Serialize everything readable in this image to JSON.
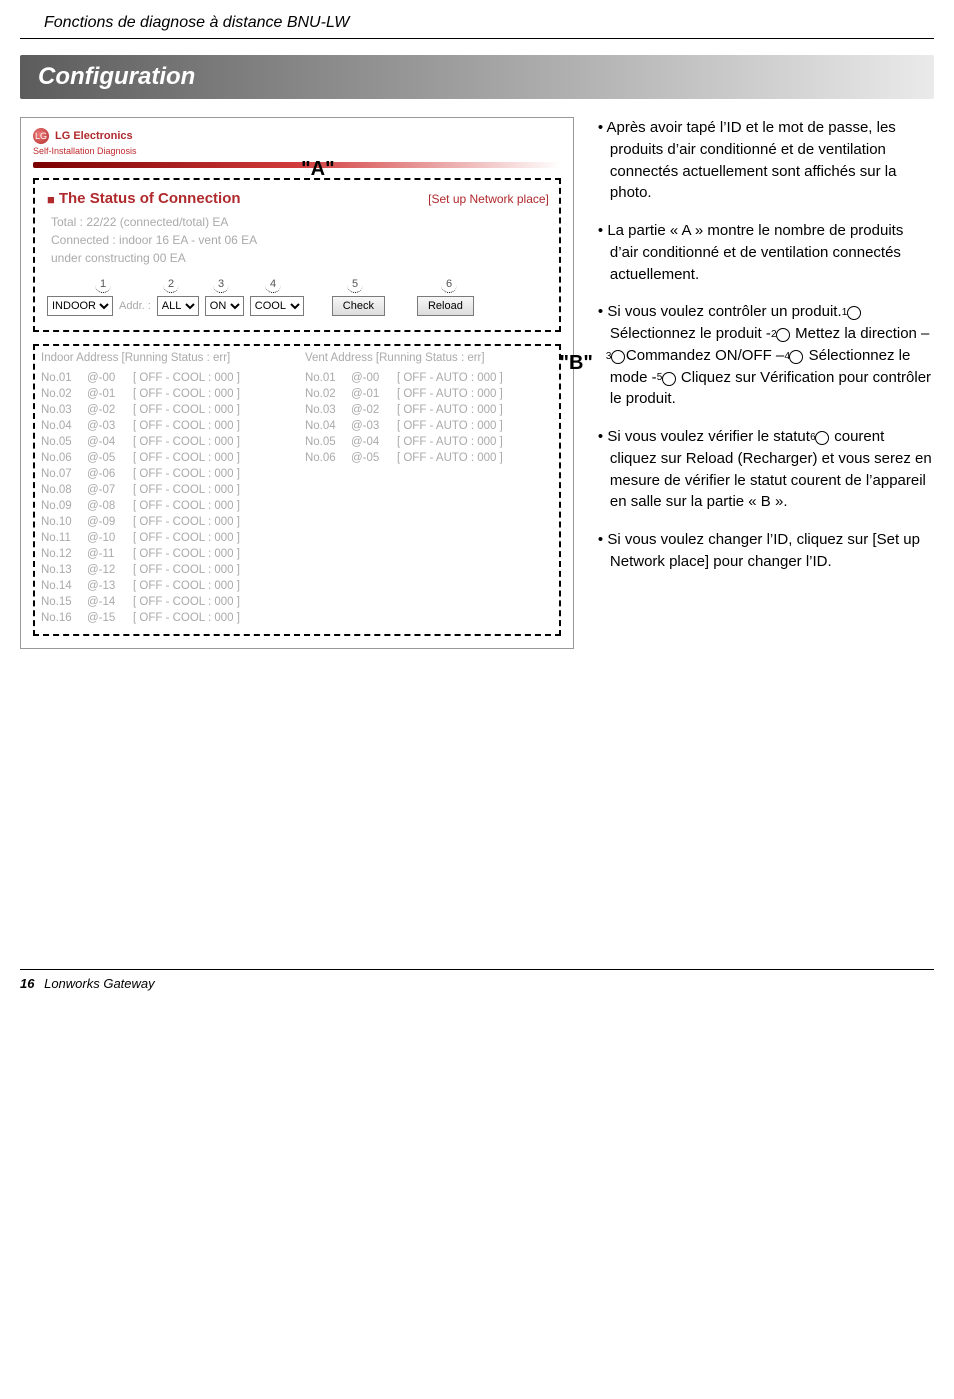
{
  "page": {
    "header_italic": "Fonctions de diagnose à distance BNU-LW",
    "section_title": "Configuration",
    "footer_page": "16",
    "footer_text": "Lonworks Gateway"
  },
  "app": {
    "logo_text": "LG",
    "brand": "LG Electronics",
    "subtitle": "Self-Installation Diagnosis"
  },
  "boxA": {
    "annot": "\"A\"",
    "status_title": "The Status of Connection",
    "setup_link": "[Set up Network place]",
    "line1": "Total : 22/22 (connected/total) EA",
    "line2": "Connected : indoor 16 EA - vent 06 EA",
    "line3": "under constructing 00 EA",
    "n1": "1",
    "n2": "2",
    "n3": "3",
    "n4": "4",
    "n5": "5",
    "n6": "6",
    "sel_group": "INDOOR",
    "addr_label": "Addr. :",
    "sel_addr": "ALL",
    "sel_onoff": "ON",
    "sel_mode": "COOL",
    "btn_check": "Check",
    "btn_reload": "Reload"
  },
  "boxB": {
    "annot": "\"B\"",
    "head_left": "Indoor Address [Running Status : err]",
    "head_right": "Vent   Address [Running Status : err]",
    "left_rows": [
      {
        "no": "No.01",
        "addr": "@-00",
        "stat": "[ OFF - COOL : 000 ]"
      },
      {
        "no": "No.02",
        "addr": "@-01",
        "stat": "[ OFF - COOL : 000 ]"
      },
      {
        "no": "No.03",
        "addr": "@-02",
        "stat": "[ OFF - COOL : 000 ]"
      },
      {
        "no": "No.04",
        "addr": "@-03",
        "stat": "[ OFF - COOL : 000 ]"
      },
      {
        "no": "No.05",
        "addr": "@-04",
        "stat": "[ OFF - COOL : 000 ]"
      },
      {
        "no": "No.06",
        "addr": "@-05",
        "stat": "[ OFF - COOL : 000 ]"
      },
      {
        "no": "No.07",
        "addr": "@-06",
        "stat": "[ OFF - COOL : 000 ]"
      },
      {
        "no": "No.08",
        "addr": "@-07",
        "stat": "[ OFF - COOL : 000 ]"
      },
      {
        "no": "No.09",
        "addr": "@-08",
        "stat": "[ OFF - COOL : 000 ]"
      },
      {
        "no": "No.10",
        "addr": "@-09",
        "stat": "[ OFF - COOL : 000 ]"
      },
      {
        "no": "No.11",
        "addr": "@-10",
        "stat": "[ OFF - COOL : 000 ]"
      },
      {
        "no": "No.12",
        "addr": "@-11",
        "stat": "[ OFF - COOL : 000 ]"
      },
      {
        "no": "No.13",
        "addr": "@-12",
        "stat": "[ OFF - COOL : 000 ]"
      },
      {
        "no": "No.14",
        "addr": "@-13",
        "stat": "[ OFF - COOL : 000 ]"
      },
      {
        "no": "No.15",
        "addr": "@-14",
        "stat": "[ OFF - COOL : 000 ]"
      },
      {
        "no": "No.16",
        "addr": "@-15",
        "stat": "[ OFF - COOL : 000 ]"
      }
    ],
    "right_rows": [
      {
        "no": "No.01",
        "addr": "@-00",
        "stat": "[ OFF - AUTO   : 000 ]"
      },
      {
        "no": "No.02",
        "addr": "@-01",
        "stat": "[ OFF - AUTO   : 000 ]"
      },
      {
        "no": "No.03",
        "addr": "@-02",
        "stat": "[ OFF - AUTO   : 000 ]"
      },
      {
        "no": "No.04",
        "addr": "@-03",
        "stat": "[ OFF - AUTO   : 000 ]"
      },
      {
        "no": "No.05",
        "addr": "@-04",
        "stat": "[ OFF - AUTO   : 000 ]"
      },
      {
        "no": "No.06",
        "addr": "@-05",
        "stat": "[ OFF - AUTO   : 000 ]"
      }
    ]
  },
  "bullets": {
    "b1": "Après avoir tapé l’ID et le mot de passe, les produits d’air conditionné et de ventilation connectés actuellement sont affichés sur la photo.",
    "b2": "La partie « A » montre le nombre de produits d’air conditionné et de ventilation connectés actuellement.",
    "b3_pre": "Si vous voulez contrôler un produit. ",
    "b3_mid1": " Sélectionnez le produit - ",
    "b3_mid2": " Mettez la direction – ",
    "b3_mid3": "Commandez ON/OFF – ",
    "b3_mid4": " Sélectionnez le mode - ",
    "b3_end": " Cliquez sur Vérification pour contrôler le produit.",
    "b4": "Si vous voulez vérifier le statut ",
    "b4_end": " courent cliquez sur Reload (Recharger) et vous serez en mesure de vérifier le statut courent de l’appareil en salle sur la partie « B ».",
    "b5": "Si vous voulez changer l’ID, cliquez sur [Set up Network place] pour changer l’ID."
  }
}
